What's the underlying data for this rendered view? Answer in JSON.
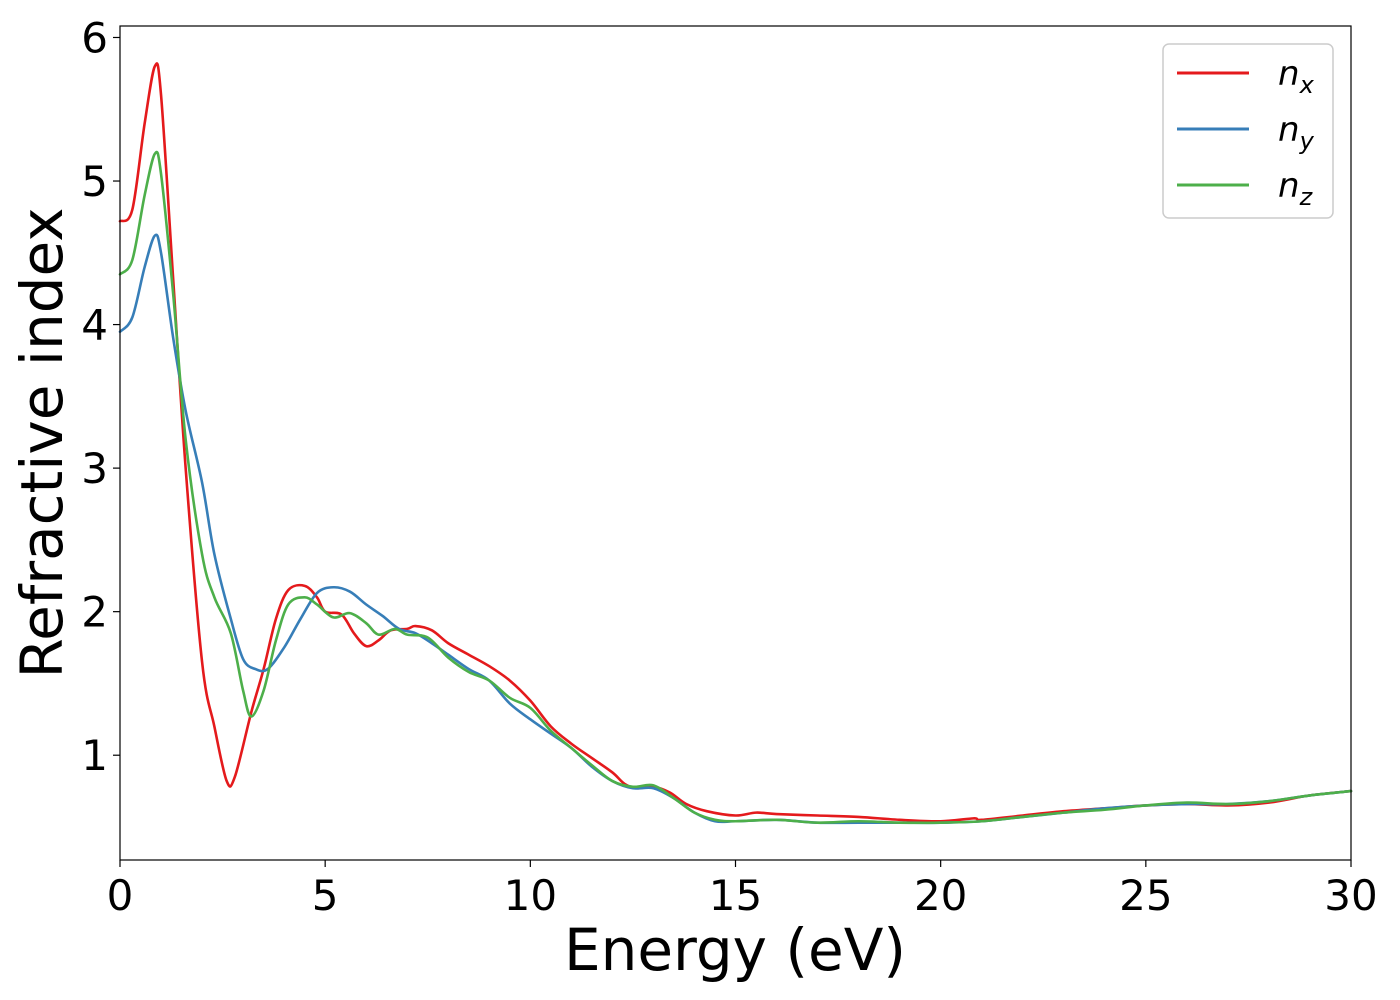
{
  "chart_data": {
    "type": "line",
    "title": "",
    "xlabel": "Energy (eV)",
    "ylabel": "Refractive index",
    "xlim": [
      0,
      30
    ],
    "ylim": [
      0.27,
      6.08
    ],
    "xticks": [
      0,
      5,
      10,
      15,
      20,
      25,
      30
    ],
    "yticks": [
      1,
      2,
      3,
      4,
      5,
      6
    ],
    "grid": false,
    "legend_position": "top-right",
    "series": [
      {
        "name": "n_x",
        "label_main": "n",
        "label_sub": "x",
        "color": "#e41a1c",
        "points": [
          [
            0,
            4.72
          ],
          [
            0.3,
            4.8
          ],
          [
            0.6,
            5.4
          ],
          [
            0.85,
            5.8
          ],
          [
            1.0,
            5.6
          ],
          [
            1.3,
            4.3
          ],
          [
            1.6,
            3.0
          ],
          [
            2.0,
            1.65
          ],
          [
            2.3,
            1.2
          ],
          [
            2.6,
            0.82
          ],
          [
            2.8,
            0.85
          ],
          [
            3.2,
            1.3
          ],
          [
            3.5,
            1.6
          ],
          [
            3.8,
            1.95
          ],
          [
            4.1,
            2.15
          ],
          [
            4.5,
            2.18
          ],
          [
            4.8,
            2.1
          ],
          [
            5.0,
            2.0
          ],
          [
            5.4,
            1.98
          ],
          [
            5.7,
            1.85
          ],
          [
            6.0,
            1.76
          ],
          [
            6.3,
            1.8
          ],
          [
            6.6,
            1.87
          ],
          [
            7.0,
            1.88
          ],
          [
            7.2,
            1.9
          ],
          [
            7.6,
            1.87
          ],
          [
            8.0,
            1.78
          ],
          [
            8.5,
            1.7
          ],
          [
            9.0,
            1.62
          ],
          [
            9.5,
            1.52
          ],
          [
            10.0,
            1.38
          ],
          [
            10.5,
            1.2
          ],
          [
            11.0,
            1.08
          ],
          [
            11.5,
            0.98
          ],
          [
            12.0,
            0.88
          ],
          [
            12.3,
            0.8
          ],
          [
            12.6,
            0.77
          ],
          [
            13.0,
            0.78
          ],
          [
            13.4,
            0.74
          ],
          [
            13.8,
            0.66
          ],
          [
            14.3,
            0.61
          ],
          [
            15.0,
            0.58
          ],
          [
            15.5,
            0.6
          ],
          [
            16.0,
            0.59
          ],
          [
            17.0,
            0.58
          ],
          [
            18.0,
            0.57
          ],
          [
            19.0,
            0.55
          ],
          [
            20.0,
            0.54
          ],
          [
            20.8,
            0.56
          ],
          [
            21.0,
            0.55
          ],
          [
            22.0,
            0.58
          ],
          [
            23.0,
            0.61
          ],
          [
            24.0,
            0.63
          ],
          [
            25.0,
            0.65
          ],
          [
            26.0,
            0.66
          ],
          [
            27.0,
            0.65
          ],
          [
            28.0,
            0.67
          ],
          [
            29.0,
            0.72
          ],
          [
            30.0,
            0.75
          ]
        ]
      },
      {
        "name": "n_y",
        "label_main": "n",
        "label_sub": "y",
        "color": "#377eb8",
        "points": [
          [
            0,
            3.95
          ],
          [
            0.3,
            4.05
          ],
          [
            0.6,
            4.4
          ],
          [
            0.85,
            4.62
          ],
          [
            1.0,
            4.5
          ],
          [
            1.3,
            3.9
          ],
          [
            1.6,
            3.4
          ],
          [
            2.0,
            2.9
          ],
          [
            2.3,
            2.4
          ],
          [
            2.7,
            1.95
          ],
          [
            3.0,
            1.67
          ],
          [
            3.3,
            1.6
          ],
          [
            3.6,
            1.6
          ],
          [
            4.0,
            1.75
          ],
          [
            4.4,
            1.95
          ],
          [
            4.8,
            2.13
          ],
          [
            5.2,
            2.17
          ],
          [
            5.6,
            2.14
          ],
          [
            6.0,
            2.05
          ],
          [
            6.4,
            1.97
          ],
          [
            6.8,
            1.88
          ],
          [
            7.2,
            1.85
          ],
          [
            7.6,
            1.78
          ],
          [
            8.0,
            1.7
          ],
          [
            8.5,
            1.6
          ],
          [
            9.0,
            1.52
          ],
          [
            9.5,
            1.36
          ],
          [
            10.0,
            1.25
          ],
          [
            10.5,
            1.15
          ],
          [
            11.0,
            1.05
          ],
          [
            11.5,
            0.92
          ],
          [
            12.0,
            0.82
          ],
          [
            12.5,
            0.77
          ],
          [
            13.0,
            0.77
          ],
          [
            13.5,
            0.7
          ],
          [
            14.0,
            0.6
          ],
          [
            14.5,
            0.54
          ],
          [
            15.0,
            0.54
          ],
          [
            16.0,
            0.55
          ],
          [
            17.0,
            0.53
          ],
          [
            18.0,
            0.53
          ],
          [
            19.0,
            0.53
          ],
          [
            20.0,
            0.53
          ],
          [
            21.0,
            0.54
          ],
          [
            22.0,
            0.57
          ],
          [
            23.0,
            0.6
          ],
          [
            24.0,
            0.63
          ],
          [
            25.0,
            0.65
          ],
          [
            26.0,
            0.66
          ],
          [
            27.0,
            0.66
          ],
          [
            28.0,
            0.68
          ],
          [
            29.0,
            0.72
          ],
          [
            30.0,
            0.75
          ]
        ]
      },
      {
        "name": "n_z",
        "label_main": "n",
        "label_sub": "z",
        "color": "#4daf4a",
        "points": [
          [
            0,
            4.35
          ],
          [
            0.3,
            4.45
          ],
          [
            0.6,
            4.9
          ],
          [
            0.85,
            5.19
          ],
          [
            1.0,
            5.05
          ],
          [
            1.3,
            4.2
          ],
          [
            1.6,
            3.2
          ],
          [
            2.0,
            2.4
          ],
          [
            2.3,
            2.1
          ],
          [
            2.7,
            1.85
          ],
          [
            3.0,
            1.45
          ],
          [
            3.2,
            1.27
          ],
          [
            3.5,
            1.45
          ],
          [
            3.8,
            1.8
          ],
          [
            4.1,
            2.05
          ],
          [
            4.5,
            2.1
          ],
          [
            4.8,
            2.05
          ],
          [
            5.2,
            1.96
          ],
          [
            5.6,
            1.99
          ],
          [
            6.0,
            1.92
          ],
          [
            6.3,
            1.84
          ],
          [
            6.7,
            1.88
          ],
          [
            7.0,
            1.84
          ],
          [
            7.5,
            1.82
          ],
          [
            8.0,
            1.68
          ],
          [
            8.5,
            1.58
          ],
          [
            9.0,
            1.52
          ],
          [
            9.5,
            1.4
          ],
          [
            10.0,
            1.33
          ],
          [
            10.5,
            1.17
          ],
          [
            11.0,
            1.05
          ],
          [
            11.5,
            0.93
          ],
          [
            12.0,
            0.82
          ],
          [
            12.5,
            0.78
          ],
          [
            13.0,
            0.79
          ],
          [
            13.5,
            0.7
          ],
          [
            14.0,
            0.6
          ],
          [
            14.5,
            0.55
          ],
          [
            15.0,
            0.54
          ],
          [
            16.0,
            0.55
          ],
          [
            17.0,
            0.53
          ],
          [
            18.0,
            0.54
          ],
          [
            19.0,
            0.53
          ],
          [
            20.0,
            0.53
          ],
          [
            21.0,
            0.54
          ],
          [
            22.0,
            0.57
          ],
          [
            23.0,
            0.6
          ],
          [
            24.0,
            0.62
          ],
          [
            25.0,
            0.65
          ],
          [
            26.0,
            0.67
          ],
          [
            27.0,
            0.66
          ],
          [
            28.0,
            0.68
          ],
          [
            29.0,
            0.72
          ],
          [
            30.0,
            0.75
          ]
        ]
      }
    ]
  }
}
